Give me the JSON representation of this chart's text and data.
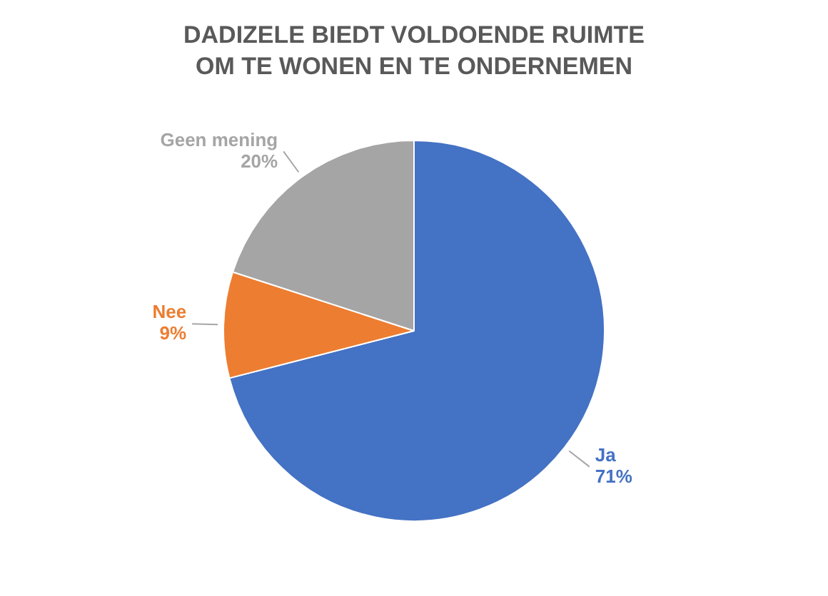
{
  "chart_data": {
    "type": "pie",
    "title": "DADIZELE BIEDT VOLDOENDE RUIMTE OM TE WONEN EN TE ONDERNEMEN",
    "categories": [
      "Ja",
      "Nee",
      "Geen mening"
    ],
    "values": [
      71,
      9,
      20
    ],
    "colors": [
      "#4472c4",
      "#ed7d31",
      "#a5a5a5"
    ],
    "value_labels": [
      "71%",
      "9%",
      "20%"
    ],
    "legend": false
  }
}
